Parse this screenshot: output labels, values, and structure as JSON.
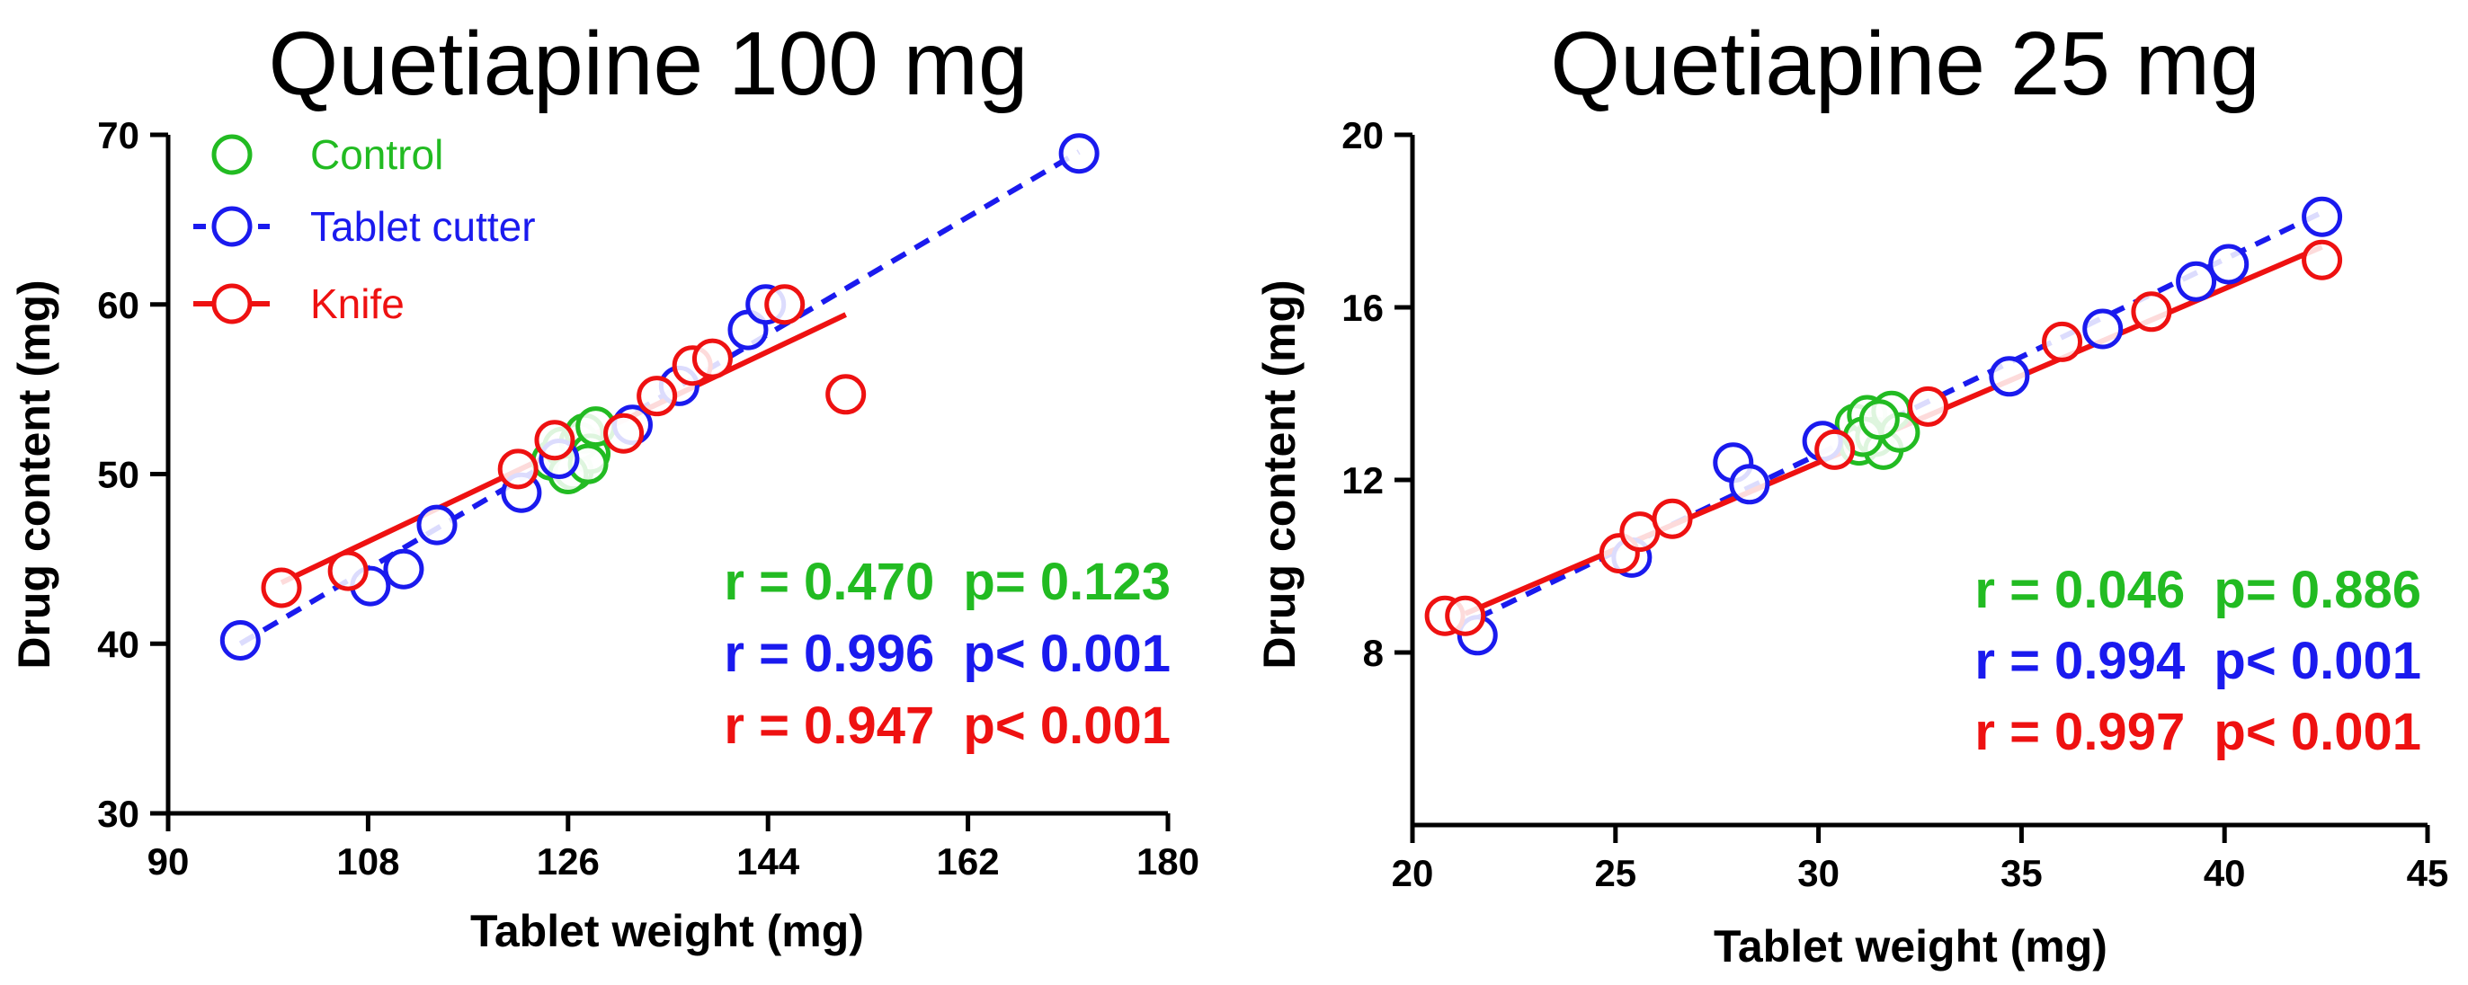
{
  "chart_data": [
    {
      "type": "scatter",
      "title": "Quetiapine 100 mg",
      "xlabel": "Tablet weight (mg)",
      "ylabel": "Drug content (mg)",
      "xlim": [
        90,
        180
      ],
      "ylim": [
        30,
        70
      ],
      "xticks": [
        "90",
        "108",
        "126",
        "144",
        "162",
        "180"
      ],
      "yticks": [
        "30",
        "40",
        "50",
        "60",
        "70"
      ],
      "legend": {
        "position": "top-left",
        "entries": [
          {
            "label": "Control",
            "color": "#22bb22",
            "line": "none"
          },
          {
            "label": "Tablet cutter",
            "color": "#1a1aee",
            "line": "dashed"
          },
          {
            "label": "Knife",
            "color": "#ee1111",
            "line": "solid"
          }
        ]
      },
      "series": [
        {
          "name": "Control",
          "color": "#22bb22",
          "points": [
            [
              124.5,
              50.8
            ],
            [
              125.5,
              51.6
            ],
            [
              126.5,
              50.2
            ],
            [
              127.0,
              51.9
            ],
            [
              127.5,
              52.4
            ],
            [
              128.0,
              51.2
            ],
            [
              128.5,
              52.8
            ],
            [
              126.0,
              50.0
            ],
            [
              127.8,
              50.6
            ]
          ],
          "fit": null
        },
        {
          "name": "Tablet cutter",
          "color": "#1a1aee",
          "points": [
            [
              96.5,
              40.2
            ],
            [
              108.2,
              43.4
            ],
            [
              111.2,
              44.4
            ],
            [
              114.2,
              47.0
            ],
            [
              121.8,
              48.9
            ],
            [
              125.2,
              50.9
            ],
            [
              131.8,
              52.9
            ],
            [
              136.0,
              55.2
            ],
            [
              142.2,
              58.5
            ],
            [
              143.8,
              60.0
            ],
            [
              172.0,
              68.9
            ]
          ],
          "fit": {
            "x": [
              96.5,
              172.0
            ],
            "y": [
              40.0,
              69.0
            ],
            "style": "dashed"
          }
        },
        {
          "name": "Knife",
          "color": "#ee1111",
          "points": [
            [
              100.2,
              43.3
            ],
            [
              106.2,
              44.3
            ],
            [
              121.5,
              50.3
            ],
            [
              124.8,
              52.0
            ],
            [
              131.0,
              52.4
            ],
            [
              134.0,
              54.6
            ],
            [
              137.2,
              56.4
            ],
            [
              139.0,
              56.8
            ],
            [
              145.5,
              60.0
            ],
            [
              151.0,
              54.7
            ]
          ],
          "fit": {
            "x": [
              100.2,
              151.0
            ],
            "y": [
              43.6,
              59.4
            ],
            "style": "solid"
          }
        }
      ],
      "annotations": [
        {
          "text": "r = 0.470  p= 0.123",
          "color": "#22bb22"
        },
        {
          "text": "r = 0.996  p< 0.001",
          "color": "#1a1aee"
        },
        {
          "text": "r = 0.947  p< 0.001",
          "color": "#ee1111"
        }
      ]
    },
    {
      "type": "scatter",
      "title": "Quetiapine 25 mg",
      "xlabel": "Tablet weight (mg)",
      "ylabel": "Drug content (mg)",
      "xlim": [
        20,
        45
      ],
      "ylim": [
        4,
        20
      ],
      "xticks": [
        "20",
        "25",
        "30",
        "35",
        "40",
        "45"
      ],
      "yticks": [
        "8",
        "12",
        "16",
        "20"
      ],
      "series": [
        {
          "name": "Control",
          "color": "#22bb22",
          "points": [
            [
              30.9,
              13.3
            ],
            [
              31.0,
              12.8
            ],
            [
              31.2,
              13.5
            ],
            [
              31.4,
              13.0
            ],
            [
              31.6,
              12.7
            ],
            [
              31.8,
              13.6
            ],
            [
              32.0,
              13.1
            ],
            [
              31.1,
              13.0
            ],
            [
              31.5,
              13.4
            ]
          ],
          "fit": null
        },
        {
          "name": "Tablet cutter",
          "color": "#1a1aee",
          "points": [
            [
              21.6,
              8.4
            ],
            [
              25.4,
              10.2
            ],
            [
              27.9,
              12.4
            ],
            [
              28.3,
              11.9
            ],
            [
              30.1,
              12.9
            ],
            [
              34.7,
              14.4
            ],
            [
              37.0,
              15.5
            ],
            [
              39.3,
              16.6
            ],
            [
              40.1,
              17.0
            ],
            [
              42.4,
              18.1
            ]
          ],
          "fit": {
            "x": [
              21.6,
              42.4
            ],
            "y": [
              8.8,
              18.2
            ],
            "style": "dashed"
          }
        },
        {
          "name": "Knife",
          "color": "#ee1111",
          "points": [
            [
              20.8,
              8.85
            ],
            [
              21.3,
              8.85
            ],
            [
              25.1,
              10.3
            ],
            [
              25.6,
              10.8
            ],
            [
              26.4,
              11.1
            ],
            [
              30.4,
              12.7
            ],
            [
              32.7,
              13.7
            ],
            [
              36.0,
              15.2
            ],
            [
              38.2,
              15.9
            ],
            [
              42.4,
              17.1
            ]
          ],
          "fit": {
            "x": [
              21.3,
              42.4
            ],
            "y": [
              8.9,
              17.4
            ],
            "style": "solid"
          }
        }
      ],
      "annotations": [
        {
          "text": "r = 0.046  p= 0.886",
          "color": "#22bb22"
        },
        {
          "text": "r = 0.994  p< 0.001",
          "color": "#1a1aee"
        },
        {
          "text": "r = 0.997  p< 0.001",
          "color": "#ee1111"
        }
      ]
    }
  ]
}
